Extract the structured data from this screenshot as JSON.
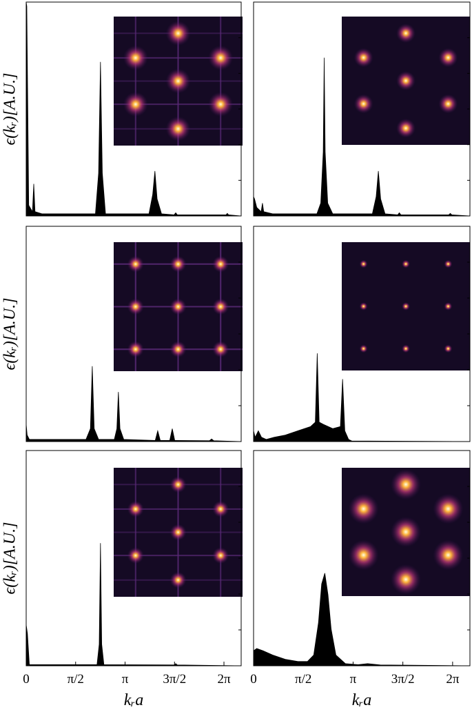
{
  "chart_data": [
    {
      "type": "area",
      "ylabel": "ϵ(kᵣ)[A.U.]",
      "x": [
        0,
        0.02,
        0.08,
        0.2,
        0.24,
        0.28,
        0.5,
        2.2,
        2.3,
        2.36,
        2.42,
        2.52,
        3.9,
        4.02,
        4.09,
        4.16,
        4.3,
        4.7,
        4.75,
        4.8,
        6.35,
        6.39,
        6.43,
        6.83
      ],
      "values": [
        1,
        0.98,
        0.05,
        0.02,
        0.15,
        0.02,
        0.01,
        0.01,
        0.2,
        0.72,
        0.2,
        0.01,
        0.01,
        0.1,
        0.21,
        0.08,
        0.01,
        0.005,
        0.015,
        0.005,
        0.005,
        0.012,
        0.005,
        0
      ],
      "xlim": [
        0,
        6.83
      ],
      "ylim": [
        0,
        1
      ]
    },
    {
      "type": "area",
      "x": [
        0,
        0.03,
        0.1,
        0.24,
        0.28,
        0.32,
        0.6,
        2.0,
        2.12,
        2.2,
        2.23,
        2.26,
        2.34,
        2.5,
        3.75,
        3.87,
        3.94,
        4.01,
        4.15,
        4.55,
        4.6,
        4.65,
        6.16,
        6.21,
        6.26,
        6.83
      ],
      "values": [
        0.09,
        0.08,
        0.04,
        0.02,
        0.06,
        0.02,
        0.01,
        0.01,
        0.06,
        0.3,
        0.74,
        0.3,
        0.06,
        0.01,
        0.01,
        0.09,
        0.21,
        0.08,
        0.01,
        0.005,
        0.015,
        0.005,
        0.005,
        0.012,
        0.005,
        0
      ],
      "xlim": [
        0,
        6.83
      ],
      "ylim": [
        0,
        1
      ]
    },
    {
      "type": "area",
      "ylabel": "ϵ(kᵣ)[A.U.]",
      "x": [
        0,
        0.03,
        0.1,
        1.9,
        2.04,
        2.1,
        2.16,
        2.3,
        2.8,
        2.88,
        2.93,
        2.98,
        3.1,
        4.1,
        4.18,
        4.26,
        4.56,
        4.64,
        4.72,
        5.82,
        5.89,
        5.96,
        6.83
      ],
      "values": [
        0.08,
        0.03,
        0.01,
        0.01,
        0.06,
        0.35,
        0.06,
        0.01,
        0.01,
        0.06,
        0.23,
        0.06,
        0.01,
        0.005,
        0.05,
        0.005,
        0.005,
        0.06,
        0.005,
        0.004,
        0.012,
        0.004,
        0
      ],
      "xlim": [
        0,
        6.83
      ],
      "ylim": [
        0,
        1
      ]
    },
    {
      "type": "area",
      "x": [
        0,
        0.05,
        0.15,
        0.25,
        0.4,
        0.65,
        1.0,
        1.4,
        1.8,
        1.95,
        2.01,
        2.07,
        2.2,
        2.5,
        2.74,
        2.81,
        2.88,
        3.0,
        3.1,
        6.83
      ],
      "values": [
        0.05,
        0.02,
        0.05,
        0.02,
        0.01,
        0.02,
        0.03,
        0.05,
        0.07,
        0.09,
        0.41,
        0.09,
        0.08,
        0.06,
        0.07,
        0.29,
        0.05,
        0.01,
        0.003,
        0
      ],
      "xlim": [
        0,
        6.83
      ],
      "ylim": [
        0,
        1
      ]
    },
    {
      "type": "area",
      "ylabel": "ϵ(kᵣ)[A.U.]",
      "xlabel": "kᵣa",
      "x": [
        0,
        0.04,
        0.1,
        2.25,
        2.32,
        2.36,
        2.4,
        2.47,
        4.7,
        4.75,
        4.8,
        6.83
      ],
      "values": [
        0.19,
        0.15,
        0.005,
        0.005,
        0.1,
        0.57,
        0.1,
        0.005,
        0.004,
        0.01,
        0.004,
        0
      ],
      "xlim": [
        0,
        6.83
      ],
      "ylim": [
        0,
        1
      ],
      "xticks": [
        0,
        {
          "value": 1.5708,
          "label": "π/2"
        },
        {
          "value": 3.1416,
          "label": "π"
        },
        {
          "value": 4.7124,
          "label": "3π/2"
        },
        {
          "value": 6.2832,
          "label": "2π"
        }
      ]
    },
    {
      "type": "area",
      "xlabel": "kᵣa",
      "x": [
        0,
        0.1,
        0.3,
        0.6,
        1.0,
        1.4,
        1.7,
        1.9,
        2.05,
        2.15,
        2.25,
        2.35,
        2.45,
        2.6,
        2.9,
        3.3,
        3.6,
        4.0,
        6.83
      ],
      "values": [
        0.07,
        0.08,
        0.07,
        0.05,
        0.03,
        0.02,
        0.02,
        0.05,
        0.2,
        0.38,
        0.43,
        0.33,
        0.17,
        0.05,
        0.01,
        0.005,
        0.01,
        0.004,
        0
      ],
      "xlim": [
        0,
        6.83
      ],
      "ylim": [
        0,
        1
      ],
      "xticks": [
        0,
        {
          "value": 1.5708,
          "label": "π/2"
        },
        {
          "value": 3.1416,
          "label": "π"
        },
        {
          "value": 4.7124,
          "label": "3π/2"
        },
        {
          "value": 6.2832,
          "label": "2π"
        }
      ]
    }
  ]
}
